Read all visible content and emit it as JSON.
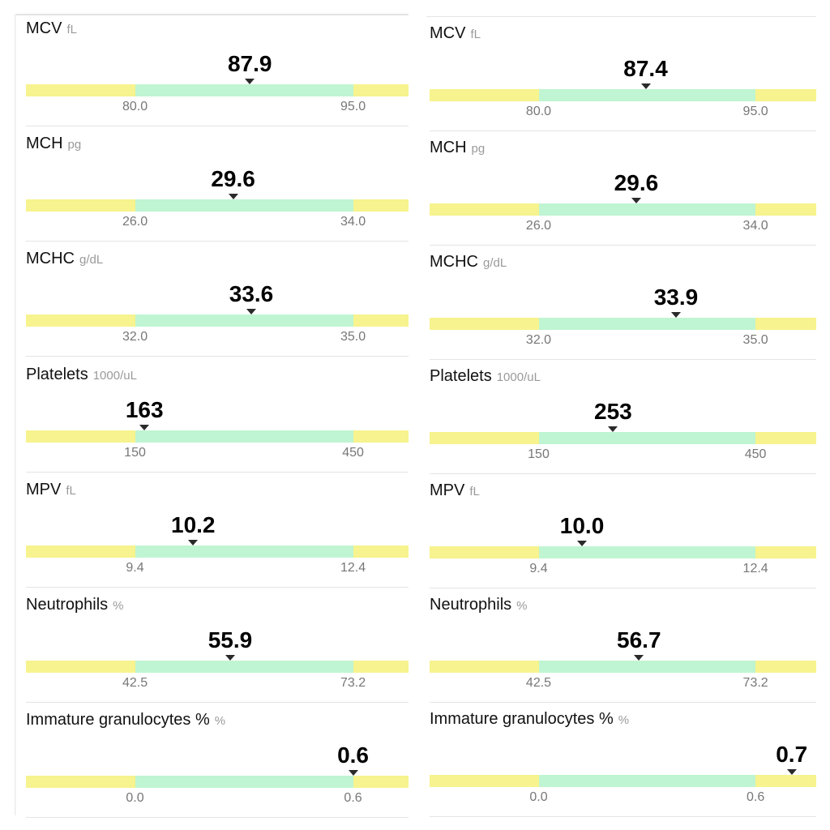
{
  "panels": [
    {
      "tests": [
        {
          "name": "MCV",
          "unit": "fL",
          "value": "87.9",
          "low": "80.0",
          "high": "95.0"
        },
        {
          "name": "MCH",
          "unit": "pg",
          "value": "29.6",
          "low": "26.0",
          "high": "34.0"
        },
        {
          "name": "MCHC",
          "unit": "g/dL",
          "value": "33.6",
          "low": "32.0",
          "high": "35.0"
        },
        {
          "name": "Platelets",
          "unit": "1000/uL",
          "value": "163",
          "low": "150",
          "high": "450"
        },
        {
          "name": "MPV",
          "unit": "fL",
          "value": "10.2",
          "low": "9.4",
          "high": "12.4"
        },
        {
          "name": "Neutrophils",
          "unit": "%",
          "value": "55.9",
          "low": "42.5",
          "high": "73.2"
        },
        {
          "name": "Immature granulocytes %",
          "unit": "%",
          "value": "0.6",
          "low": "0.0",
          "high": "0.6"
        }
      ]
    },
    {
      "tests": [
        {
          "name": "MCV",
          "unit": "fL",
          "value": "87.4",
          "low": "80.0",
          "high": "95.0"
        },
        {
          "name": "MCH",
          "unit": "pg",
          "value": "29.6",
          "low": "26.0",
          "high": "34.0"
        },
        {
          "name": "MCHC",
          "unit": "g/dL",
          "value": "33.9",
          "low": "32.0",
          "high": "35.0"
        },
        {
          "name": "Platelets",
          "unit": "1000/uL",
          "value": "253",
          "low": "150",
          "high": "450"
        },
        {
          "name": "MPV",
          "unit": "fL",
          "value": "10.0",
          "low": "9.4",
          "high": "12.4"
        },
        {
          "name": "Neutrophils",
          "unit": "%",
          "value": "56.7",
          "low": "42.5",
          "high": "73.2"
        },
        {
          "name": "Immature granulocytes %",
          "unit": "%",
          "value": "0.7",
          "low": "0.0",
          "high": "0.6"
        }
      ]
    }
  ],
  "colors": {
    "out_of_range": "#f7f38e",
    "in_range": "#bff5d2",
    "marker": "#2a2a2a"
  }
}
